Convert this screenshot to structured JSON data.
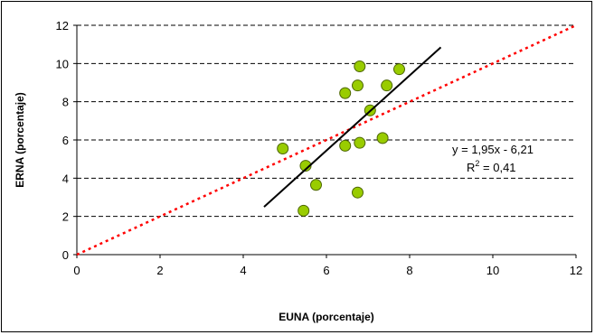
{
  "chart_data": {
    "type": "scatter",
    "title": "",
    "xlabel": "EUNA (porcentaje)",
    "ylabel": "ERNA (porcentaje)",
    "xlim": [
      0,
      12
    ],
    "ylim": [
      0,
      12
    ],
    "x_ticks": [
      "0",
      "2",
      "4",
      "6",
      "8",
      "10",
      "12"
    ],
    "y_ticks": [
      "0",
      "2",
      "4",
      "6",
      "8",
      "10",
      "12"
    ],
    "grid": "horizontal dashed",
    "legend": "none",
    "points": [
      {
        "x": 5.45,
        "y": 2.3
      },
      {
        "x": 5.75,
        "y": 3.65
      },
      {
        "x": 6.75,
        "y": 3.25
      },
      {
        "x": 5.5,
        "y": 4.65
      },
      {
        "x": 4.95,
        "y": 5.55
      },
      {
        "x": 6.45,
        "y": 5.7
      },
      {
        "x": 6.8,
        "y": 5.85
      },
      {
        "x": 7.35,
        "y": 6.1
      },
      {
        "x": 7.05,
        "y": 7.55
      },
      {
        "x": 6.45,
        "y": 8.45
      },
      {
        "x": 6.75,
        "y": 8.85
      },
      {
        "x": 7.45,
        "y": 8.85
      },
      {
        "x": 6.8,
        "y": 9.85
      },
      {
        "x": 7.75,
        "y": 9.7
      }
    ],
    "trendline": {
      "x": [
        4.5,
        8.75
      ],
      "y": [
        2.5,
        10.85
      ]
    },
    "reference_line": {
      "x": [
        0,
        12
      ],
      "y": [
        0,
        12
      ]
    },
    "annotations": [
      "y = 1,95x - 6,21",
      "R",
      "2",
      " = 0,41"
    ],
    "colors": {
      "point_fill": "#99cc00",
      "point_stroke": "#4d6600",
      "trendline": "#000000",
      "reference_line": "#ff0000",
      "grid": "#000000"
    }
  }
}
